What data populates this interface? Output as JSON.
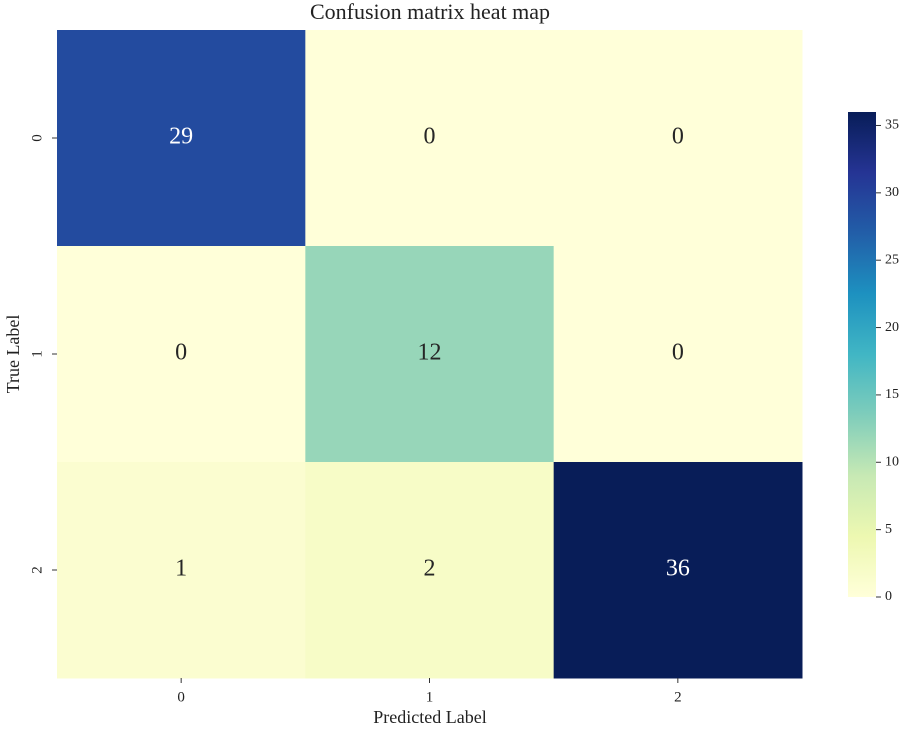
{
  "chart_data": {
    "type": "heatmap",
    "title": "Confusion matrix heat map",
    "x_label": "Predicted Label",
    "y_label": "True Label",
    "x_categories": [
      "0",
      "1",
      "2"
    ],
    "y_categories": [
      "0",
      "1",
      "2"
    ],
    "values": [
      [
        29,
        0,
        0
      ],
      [
        0,
        12,
        0
      ],
      [
        1,
        2,
        36
      ]
    ],
    "colormap": "YlGnBu",
    "colors": [
      "#ffffd9",
      "#edf8b1",
      "#c7e9b4",
      "#7fcdbb",
      "#41b6c4",
      "#1d91c0",
      "#225ea8",
      "#253494",
      "#081d58"
    ],
    "clim": [
      0,
      36
    ],
    "cticks": [
      0,
      5,
      10,
      15,
      20,
      25,
      30,
      35
    ]
  }
}
